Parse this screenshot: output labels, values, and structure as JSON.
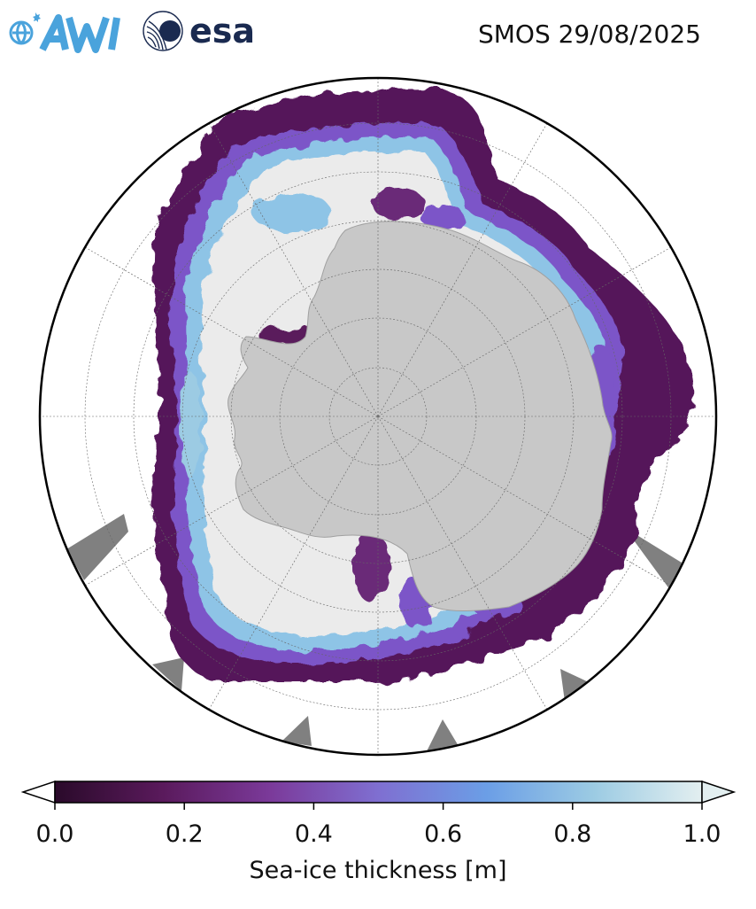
{
  "header": {
    "title": "SMOS 29/08/2025",
    "logos": [
      {
        "name": "awi-logo",
        "text": "AWI"
      },
      {
        "name": "esa-logo",
        "text": "esa"
      }
    ]
  },
  "map": {
    "projection": "south-polar-stereographic",
    "graticule": true,
    "colors": {
      "land": "#c8c8c8",
      "ocean": "#ffffff",
      "thick_ice": "#ebebeb",
      "missing_data": "#808080",
      "outline": "#000000"
    }
  },
  "colorbar": {
    "label": "Sea-ice thickness [m]",
    "min": 0.0,
    "max": 1.0,
    "ticks": [
      "0.0",
      "0.2",
      "0.4",
      "0.6",
      "0.8",
      "1.0"
    ],
    "colors": [
      "#2a0a2a",
      "#5a1a5c",
      "#7b3a9a",
      "#7f6fd1",
      "#6b9ee6",
      "#9ccbe3",
      "#e3eff0"
    ],
    "extend": "both"
  }
}
